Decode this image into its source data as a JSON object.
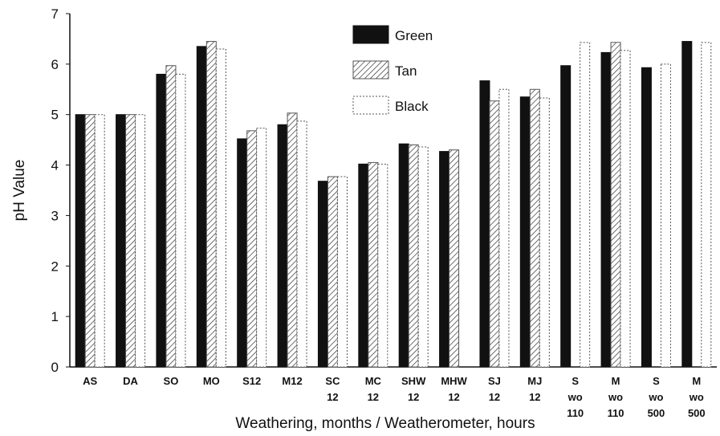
{
  "chart_data": {
    "type": "bar",
    "x_label": "Weathering,  months / Weatherometer,  hours",
    "y_label": "pH Value",
    "categories": [
      "AS",
      "DA",
      "SO",
      "MO",
      "S12",
      "M12",
      "SC\n12",
      "MC\n12",
      "SHW\n12",
      "MHW\n12",
      "SJ\n12",
      "MJ\n12",
      "S\nwo\n110",
      "M\nwo\n110",
      "S\nwo\n500",
      "M\nwo\n500"
    ],
    "series": [
      {
        "name": "Green",
        "color": "#111111",
        "hatch": false,
        "values": [
          5,
          5,
          5.8,
          6.35,
          4.52,
          4.8,
          3.68,
          4.02,
          4.42,
          4.27,
          5.67,
          5.35,
          5.97,
          6.23,
          5.93,
          6.45
        ]
      },
      {
        "name": "Tan",
        "color": "#ffffff",
        "hatch": true,
        "values": [
          5,
          5,
          5.97,
          6.45,
          4.68,
          5.03,
          3.77,
          4.05,
          4.4,
          4.3,
          5.27,
          5.5,
          null,
          6.43,
          null,
          null
        ]
      },
      {
        "name": "Black",
        "color": "#ffffff",
        "hatch": false,
        "values": [
          5,
          5,
          5.8,
          6.3,
          4.73,
          4.87,
          3.77,
          4.02,
          4.36,
          null,
          5.5,
          5.33,
          6.43,
          6.27,
          6.0,
          6.43
        ]
      }
    ],
    "ylim": [
      0,
      7
    ],
    "yticks": [
      0,
      1,
      2,
      3,
      4,
      5,
      6,
      7
    ],
    "grid": false,
    "legend": "top-center"
  }
}
